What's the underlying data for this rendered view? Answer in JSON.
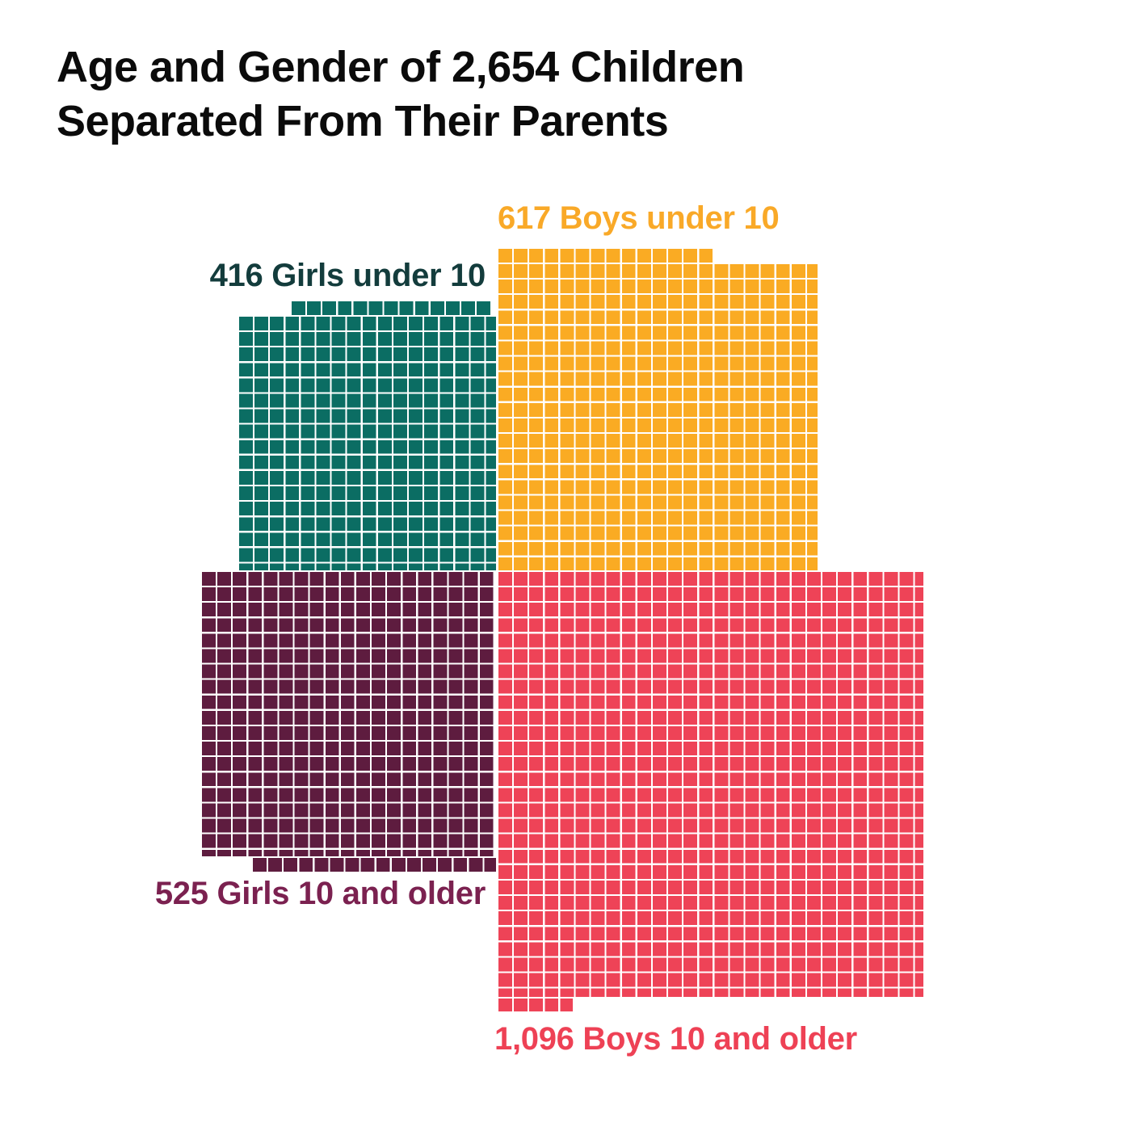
{
  "title": {
    "line1": "Age and Gender of 2,654 Children",
    "line2": "Separated From Their Parents"
  },
  "chart_data": {
    "type": "waffle",
    "title": "Age and Gender of 2,654 Children Separated From Their Parents",
    "total_children": 2654,
    "unit": "1 square-grid area proportional to number of children",
    "background_color": "#ffffff",
    "grid_line_color": "#ffffff",
    "title_color": "#0b0b0b",
    "legend_position": "labels adjacent to each block",
    "groups": [
      {
        "name": "Boys under 10",
        "label": "617 Boys under 10",
        "value": 617,
        "color": "#FAAB23",
        "label_color": "#F9A928",
        "quadrant": "top-right",
        "label_position": "above block"
      },
      {
        "name": "Girls under 10",
        "label": "416 Girls under 10",
        "value": 416,
        "color": "#0B6D63",
        "label_color": "#133C3C",
        "quadrant": "top-left",
        "label_position": "above block"
      },
      {
        "name": "Girls 10 and older",
        "label": "525 Girls 10 and older",
        "value": 525,
        "color": "#5E1C3F",
        "label_color": "#7B2150",
        "quadrant": "bottom-left",
        "label_position": "below block"
      },
      {
        "name": "Boys 10 and older",
        "label": "1,096 Boys 10 and older",
        "value": 1096,
        "color": "#EE4357",
        "label_color": "#EE4155",
        "quadrant": "bottom-right",
        "label_position": "below block"
      }
    ]
  }
}
